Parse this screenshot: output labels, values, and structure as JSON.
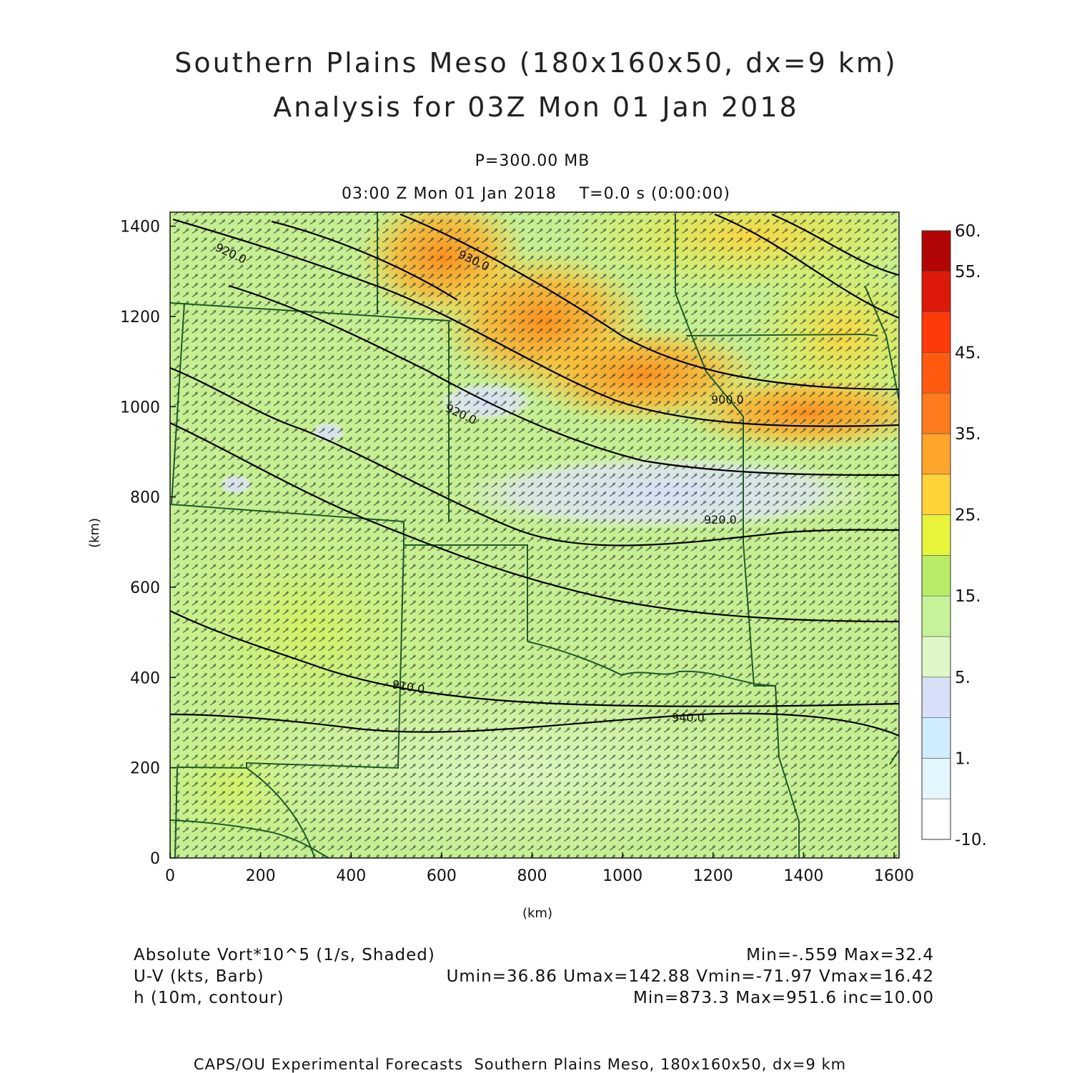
{
  "title": {
    "line1": "Southern Plains Meso (180x160x50, dx=9 km)",
    "line2": "Analysis for 03Z Mon 01 Jan 2018"
  },
  "subtitle": {
    "level": "P=300.00 MB",
    "time": "03:00 Z Mon 01 Jan 2018    T=0.0 s (0:00:00)"
  },
  "axes": {
    "x_label": "(km)",
    "y_label": "(km)",
    "x_ticks": [
      "0",
      "200",
      "400",
      "600",
      "800",
      "1000",
      "1200",
      "1400",
      "1600"
    ],
    "y_ticks": [
      "0",
      "200",
      "400",
      "600",
      "800",
      "1000",
      "1200",
      "1400"
    ],
    "x_range": [
      0,
      1611
    ],
    "y_range": [
      0,
      1431
    ]
  },
  "colorbar": {
    "labels": [
      "60.",
      "55.",
      "45.",
      "35.",
      "25.",
      "15.",
      "5.",
      "1.",
      "-10."
    ],
    "colors": [
      "#ffffff",
      "#e4f7ff",
      "#d0ecff",
      "#d8e0f8",
      "#def7c6",
      "#c6f39a",
      "#b8ec66",
      "#e6f53a",
      "#ffd23a",
      "#ffa52a",
      "#ff7a1c",
      "#ff5a10",
      "#ff3a0a",
      "#dd1a0a",
      "#b20505"
    ]
  },
  "contour_labels": [
    "920.0",
    "930.0",
    "920.0",
    "900.0",
    "920.0",
    "910.0",
    "940.0"
  ],
  "map_features": [
    "state boundaries",
    "wind barbs",
    "height contours"
  ],
  "legend": {
    "field1": "Absolute Vort*10^5 (1/s, Shaded)",
    "field1_stats": "Min=-.559 Max=32.4",
    "field2": "U-V (kts, Barb)",
    "field2_stats": "Umin=36.86 Umax=142.88 Vmin=-71.97 Vmax=16.42",
    "field3": "h (10m, contour)",
    "field3_stats": "Min=873.3 Max=951.6 inc=10.00"
  },
  "footer": "CAPS/OU Experimental Forecasts  Southern Plains Meso, 180x160x50, dx=9 km"
}
